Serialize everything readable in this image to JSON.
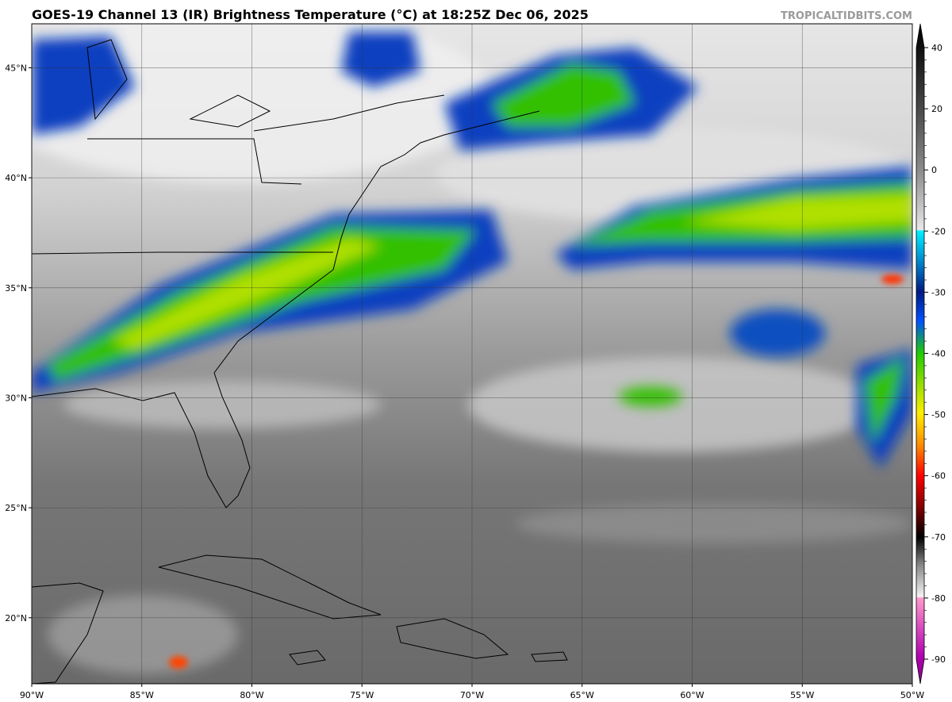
{
  "title": "GOES-19 Channel 13 (IR) Brightness Temperature (°C) at 18:25Z Dec 06, 2025",
  "credit": "TROPICALTIDBITS.COM",
  "map": {
    "lon_range": [
      -90,
      -50
    ],
    "lat_range": [
      17,
      47
    ],
    "lon_ticks": [
      {
        "value": -90,
        "label": "90°W"
      },
      {
        "value": -85,
        "label": "85°W"
      },
      {
        "value": -80,
        "label": "80°W"
      },
      {
        "value": -75,
        "label": "75°W"
      },
      {
        "value": -70,
        "label": "70°W"
      },
      {
        "value": -65,
        "label": "65°W"
      },
      {
        "value": -60,
        "label": "60°W"
      },
      {
        "value": -55,
        "label": "55°W"
      },
      {
        "value": -50,
        "label": "50°W"
      }
    ],
    "lat_ticks": [
      {
        "value": 20,
        "label": "20°N"
      },
      {
        "value": 25,
        "label": "25°N"
      },
      {
        "value": 30,
        "label": "30°N"
      },
      {
        "value": 35,
        "label": "35°N"
      },
      {
        "value": 40,
        "label": "40°N"
      },
      {
        "value": 45,
        "label": "45°N"
      }
    ]
  },
  "colorbar": {
    "ticks": [
      40,
      20,
      0,
      -20,
      -30,
      -40,
      -50,
      -60,
      -70,
      -80,
      -90
    ]
  }
}
